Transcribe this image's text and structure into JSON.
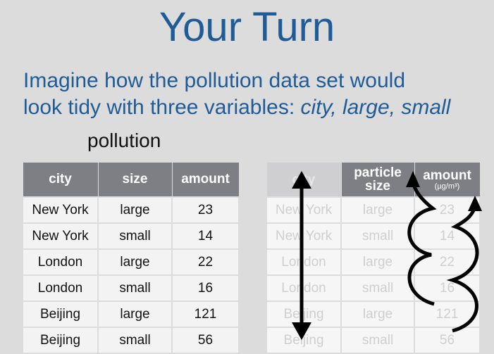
{
  "title": "Your Turn",
  "subtitle": {
    "line1": "Imagine how the pollution data set would",
    "line2_prefix": "look tidy with three variables: ",
    "line2_vars": "city, large, small"
  },
  "table_caption": "pollution",
  "left_table": {
    "headers": [
      "city",
      "size",
      "amount"
    ],
    "rows": [
      [
        "New York",
        "large",
        "23"
      ],
      [
        "New York",
        "small",
        "14"
      ],
      [
        "London",
        "large",
        "22"
      ],
      [
        "London",
        "small",
        "16"
      ],
      [
        "Beijing",
        "large",
        "121"
      ],
      [
        "Beijing",
        "small",
        "56"
      ]
    ]
  },
  "right_table": {
    "headers": [
      "city",
      "particle size",
      "amount"
    ],
    "amount_unit": "(µg/m³)",
    "rows": [
      [
        "New York",
        "large",
        "23"
      ],
      [
        "New York",
        "small",
        "14"
      ],
      [
        "London",
        "large",
        "22"
      ],
      [
        "London",
        "small",
        "16"
      ],
      [
        "Beijing",
        "large",
        "121"
      ],
      [
        "Beijing",
        "small",
        "56"
      ]
    ]
  },
  "colors": {
    "title": "#1f5b96",
    "header_bg": "#7d7f84",
    "background": "#dcdcdc"
  }
}
